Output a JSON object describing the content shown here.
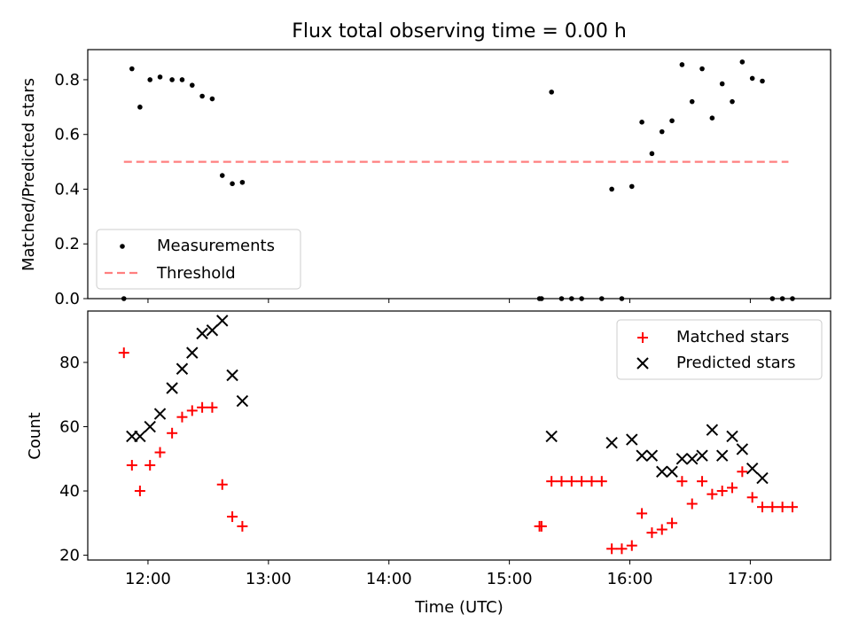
{
  "chart_data": [
    {
      "type": "scatter",
      "title": "Flux total observing time = 0.00 h",
      "ylabel": "Matched/Predicted stars",
      "ylim": [
        0,
        0.91
      ],
      "yticks": [
        0.0,
        0.2,
        0.4,
        0.6,
        0.8
      ],
      "ytick_labels": [
        "0.0",
        "0.2",
        "0.4",
        "0.6",
        "0.8"
      ],
      "legend": {
        "placement": "lower-left",
        "entries": [
          {
            "name": "Measurements",
            "marker": "dot",
            "color": "#000000"
          },
          {
            "name": "Threshold",
            "marker": "dashed-line",
            "color": "#ff7f7f"
          }
        ]
      },
      "threshold": {
        "name": "Threshold",
        "value": 0.5,
        "x_start": "11:48",
        "x_end": "17:19",
        "color": "#ff7f7f"
      },
      "series": [
        {
          "name": "Measurements",
          "color": "#000000",
          "points": [
            [
              "11:48",
              0.0
            ],
            [
              "11:52",
              0.84
            ],
            [
              "11:56",
              0.7
            ],
            [
              "12:01",
              0.8
            ],
            [
              "12:06",
              0.81
            ],
            [
              "12:12",
              0.8
            ],
            [
              "12:17",
              0.8
            ],
            [
              "12:22",
              0.78
            ],
            [
              "12:27",
              0.74
            ],
            [
              "12:32",
              0.73
            ],
            [
              "12:37",
              0.45
            ],
            [
              "12:42",
              0.42
            ],
            [
              "12:47",
              0.425
            ],
            [
              "15:15",
              0.0
            ],
            [
              "15:16",
              0.0
            ],
            [
              "15:21",
              0.755
            ],
            [
              "15:26",
              0.0
            ],
            [
              "15:31",
              0.0
            ],
            [
              "15:36",
              0.0
            ],
            [
              "15:46",
              0.0
            ],
            [
              "15:51",
              0.4
            ],
            [
              "15:56",
              0.0
            ],
            [
              "16:01",
              0.41
            ],
            [
              "16:06",
              0.645
            ],
            [
              "16:11",
              0.53
            ],
            [
              "16:16",
              0.61
            ],
            [
              "16:21",
              0.65
            ],
            [
              "16:26",
              0.855
            ],
            [
              "16:31",
              0.72
            ],
            [
              "16:36",
              0.84
            ],
            [
              "16:41",
              0.66
            ],
            [
              "16:46",
              0.785
            ],
            [
              "16:51",
              0.72
            ],
            [
              "16:56",
              0.865
            ],
            [
              "17:01",
              0.805
            ],
            [
              "17:06",
              0.795
            ],
            [
              "17:11",
              0.0
            ],
            [
              "17:16",
              0.0
            ],
            [
              "17:21",
              0.0
            ]
          ]
        }
      ]
    },
    {
      "type": "scatter",
      "xlabel": "Time (UTC)",
      "ylabel": "Count",
      "ylim": [
        18.5,
        96
      ],
      "yticks": [
        20,
        40,
        60,
        80
      ],
      "ytick_labels": [
        "20",
        "40",
        "60",
        "80"
      ],
      "xlim": [
        "11:30",
        "17:40"
      ],
      "xticks": [
        "12:00",
        "13:00",
        "14:00",
        "15:00",
        "16:00",
        "17:00"
      ],
      "xtick_labels": [
        "12:00",
        "13:00",
        "14:00",
        "15:00",
        "16:00",
        "17:00"
      ],
      "legend": {
        "placement": "top-right",
        "entries": [
          {
            "name": "Matched stars",
            "marker": "plus",
            "color": "#ff0000"
          },
          {
            "name": "Predicted stars",
            "marker": "x",
            "color": "#000000"
          }
        ]
      },
      "series": [
        {
          "name": "Matched stars",
          "color": "#ff0000",
          "points": [
            [
              "11:48",
              83
            ],
            [
              "11:52",
              48
            ],
            [
              "11:56",
              40
            ],
            [
              "12:01",
              48
            ],
            [
              "12:06",
              52
            ],
            [
              "12:12",
              58
            ],
            [
              "12:17",
              63
            ],
            [
              "12:22",
              65
            ],
            [
              "12:27",
              66
            ],
            [
              "12:32",
              66
            ],
            [
              "12:37",
              42
            ],
            [
              "12:42",
              32
            ],
            [
              "12:47",
              29
            ],
            [
              "15:15",
              29
            ],
            [
              "15:16",
              29
            ],
            [
              "15:21",
              43
            ],
            [
              "15:26",
              43
            ],
            [
              "15:31",
              43
            ],
            [
              "15:36",
              43
            ],
            [
              "15:41",
              43
            ],
            [
              "15:46",
              43
            ],
            [
              "15:51",
              22
            ],
            [
              "15:56",
              22
            ],
            [
              "16:01",
              23
            ],
            [
              "16:06",
              33
            ],
            [
              "16:11",
              27
            ],
            [
              "16:16",
              28
            ],
            [
              "16:21",
              30
            ],
            [
              "16:26",
              43
            ],
            [
              "16:31",
              36
            ],
            [
              "16:36",
              43
            ],
            [
              "16:41",
              39
            ],
            [
              "16:46",
              40
            ],
            [
              "16:51",
              41
            ],
            [
              "16:56",
              46
            ],
            [
              "17:01",
              38
            ],
            [
              "17:06",
              35
            ],
            [
              "17:11",
              35
            ],
            [
              "17:16",
              35
            ],
            [
              "17:21",
              35
            ]
          ]
        },
        {
          "name": "Predicted stars",
          "color": "#000000",
          "points": [
            [
              "11:52",
              57
            ],
            [
              "11:56",
              57
            ],
            [
              "12:01",
              60
            ],
            [
              "12:06",
              64
            ],
            [
              "12:12",
              72
            ],
            [
              "12:17",
              78
            ],
            [
              "12:22",
              83
            ],
            [
              "12:27",
              89
            ],
            [
              "12:32",
              90
            ],
            [
              "12:37",
              93
            ],
            [
              "12:42",
              76
            ],
            [
              "12:47",
              68
            ],
            [
              "15:21",
              57
            ],
            [
              "15:51",
              55
            ],
            [
              "16:01",
              56
            ],
            [
              "16:06",
              51
            ],
            [
              "16:11",
              51
            ],
            [
              "16:16",
              46
            ],
            [
              "16:21",
              46
            ],
            [
              "16:26",
              50
            ],
            [
              "16:31",
              50
            ],
            [
              "16:36",
              51
            ],
            [
              "16:41",
              59
            ],
            [
              "16:46",
              51
            ],
            [
              "16:51",
              57
            ],
            [
              "16:56",
              53
            ],
            [
              "17:01",
              47
            ],
            [
              "17:06",
              44
            ]
          ]
        }
      ]
    }
  ]
}
